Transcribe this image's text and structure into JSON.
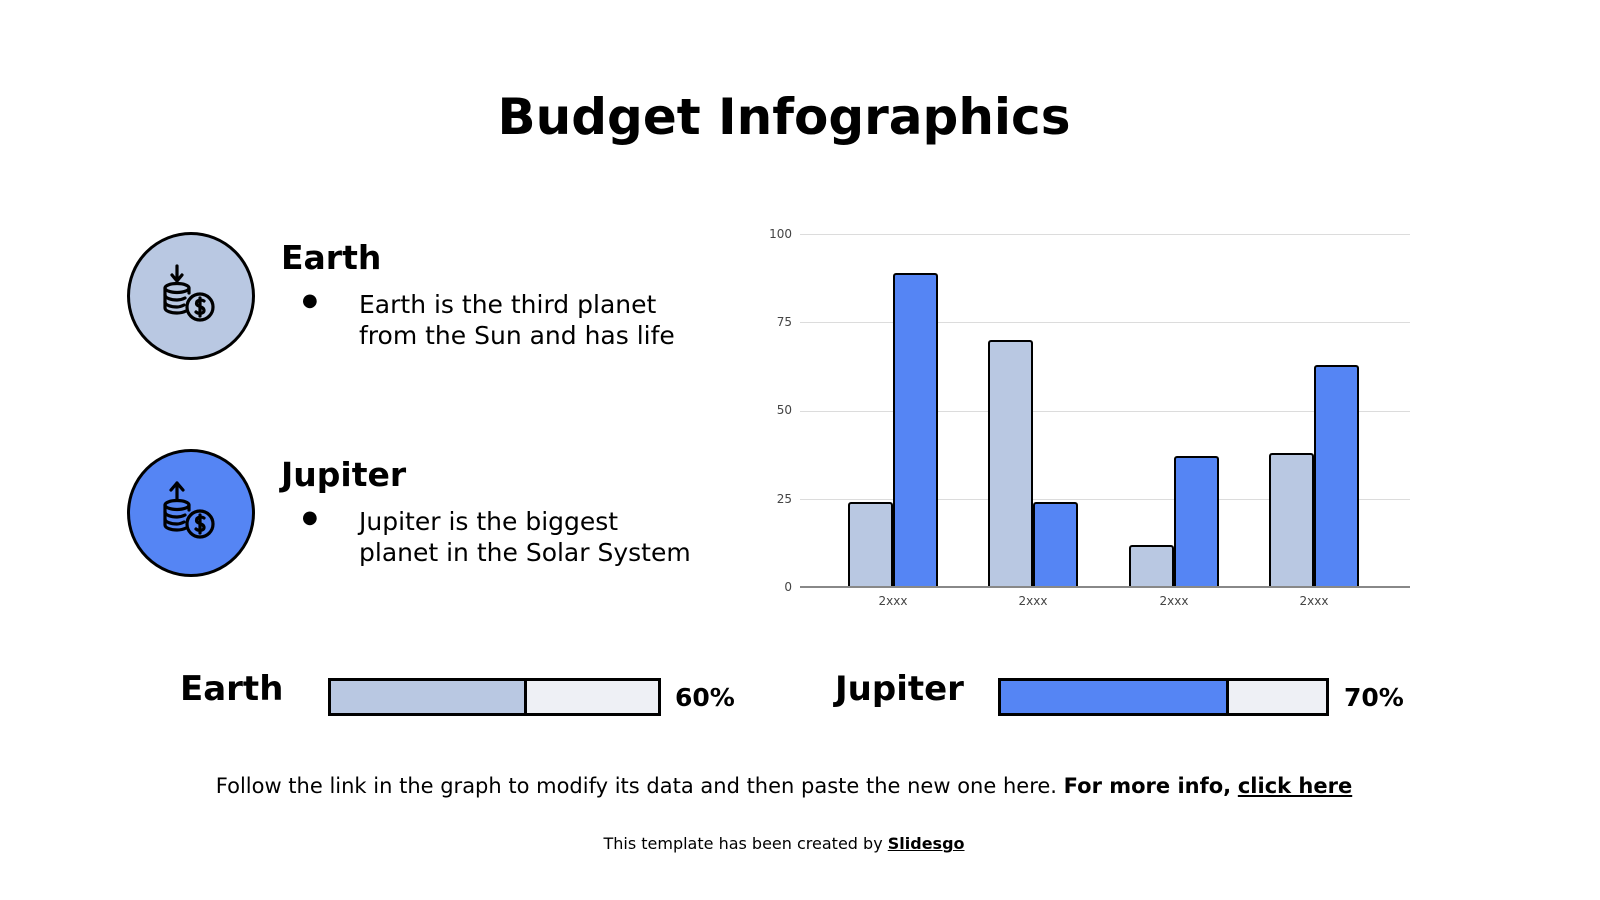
{
  "title": "Budget Infographics",
  "colors": {
    "light": "#b9c8e2",
    "accent": "#5585f4",
    "track": "#eef0f5"
  },
  "items": [
    {
      "title": "Earth",
      "text_line1": "Earth is the third planet",
      "text_line2": "from the Sun and has life",
      "icon": "coins-deposit-icon"
    },
    {
      "title": "Jupiter",
      "text_line1": "Jupiter is the biggest",
      "text_line2": "planet in the Solar System",
      "icon": "coins-withdraw-icon"
    }
  ],
  "bullet": "●",
  "progress": [
    {
      "label": "Earth",
      "value": 60,
      "value_label": "60%"
    },
    {
      "label": "Jupiter",
      "value": 70,
      "value_label": "70%"
    }
  ],
  "footer": {
    "text": "Follow the link in the graph to modify its data and then paste the new one here.",
    "bold": "For more info,",
    "link": "click here"
  },
  "credit": {
    "text": "This template has been created by",
    "link": "Slidesgo"
  },
  "chart_data": {
    "type": "bar",
    "title": "",
    "xlabel": "",
    "ylabel": "",
    "categories": [
      "2xxx",
      "2xxx",
      "2xxx",
      "2xxx"
    ],
    "series": [
      {
        "name": "Earth",
        "color": "#b9c8e2",
        "values": [
          24,
          70,
          12,
          38
        ]
      },
      {
        "name": "Jupiter",
        "color": "#5585f4",
        "values": [
          89,
          24,
          37,
          63
        ]
      }
    ],
    "ylim": [
      0,
      100
    ],
    "yticks": [
      "100",
      "75",
      "50",
      "25",
      "0"
    ],
    "grid": true,
    "legend": "none"
  }
}
